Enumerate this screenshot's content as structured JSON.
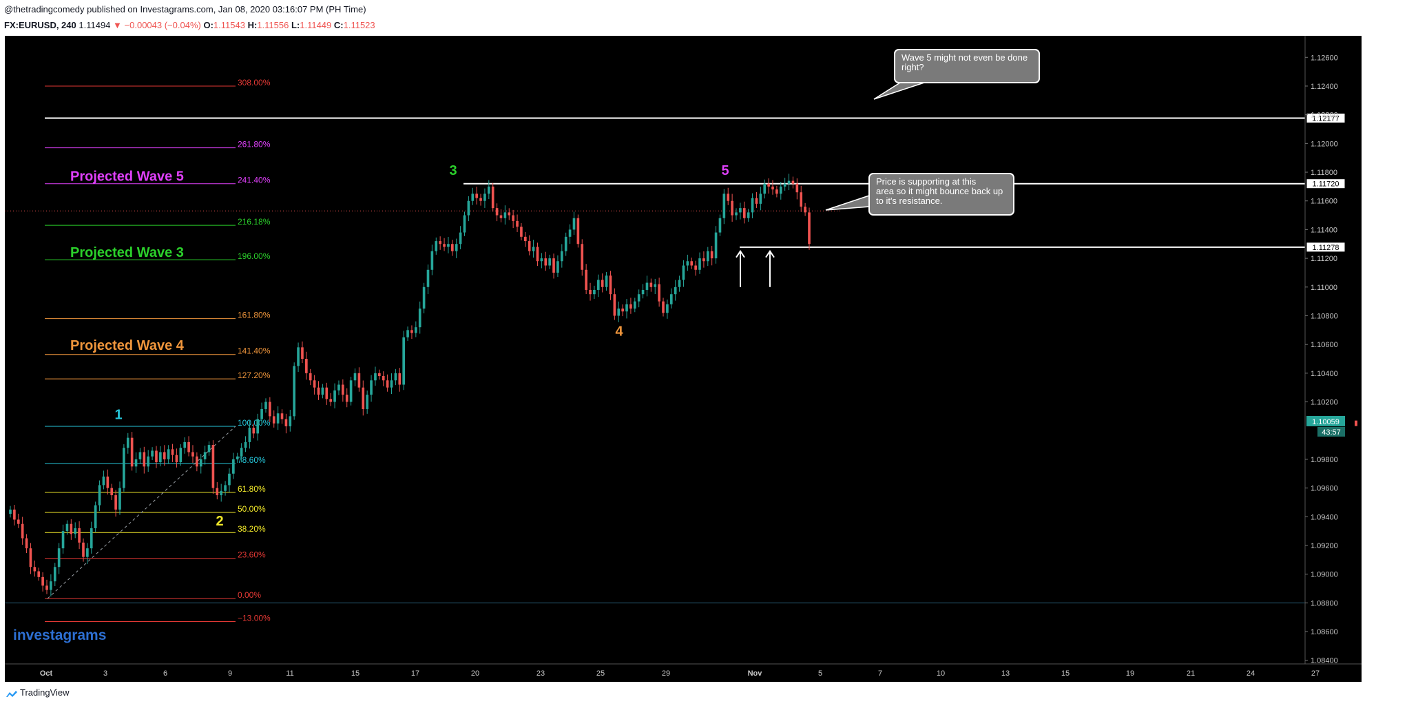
{
  "header": {
    "published": "@thetradingcomedy published on Investagrams.com, Jan 08, 2020 03:16:07 PM (PH Time)",
    "symbol": "FX:EURUSD, 240",
    "last": "1.11494",
    "change": "−0.00043 (−0.04%)",
    "o_label": "O:",
    "o": "1.11543",
    "h_label": "H:",
    "h": "1.11556",
    "l_label": "L:",
    "l": "1.11449",
    "c_label": "C:",
    "c": "1.11523"
  },
  "footer": {
    "brand": "TradingView"
  },
  "watermark": "investagrams",
  "colors": {
    "up": "#26a69a",
    "down": "#ef5350",
    "background": "#000000",
    "fib_red": "#e53935",
    "fib_magenta": "#e040fb",
    "fib_green": "#2bd02b",
    "fib_orange": "#f0963c",
    "fib_cyan": "#26c6da",
    "fib_yellow": "#f2e92a"
  },
  "chart_data": {
    "type": "candlestick",
    "symbol": "FX:EURUSD",
    "interval": "240",
    "ylim": [
      1.0825,
      1.1275
    ],
    "y_ticks": [
      "1.12600",
      "1.12400",
      "1.12200",
      "1.12000",
      "1.11800",
      "1.11600",
      "1.11400",
      "1.11200",
      "1.11000",
      "1.10800",
      "1.10600",
      "1.10400",
      "1.10200",
      "1.09800",
      "1.09600",
      "1.09400",
      "1.09200",
      "1.09000",
      "1.08800",
      "1.08600",
      "1.08400"
    ],
    "x_ticks": [
      "Oct",
      "3",
      "6",
      "9",
      "11",
      "15",
      "17",
      "20",
      "23",
      "25",
      "29",
      "Nov",
      "5",
      "7",
      "10",
      "13",
      "15",
      "19",
      "21",
      "24",
      "27"
    ],
    "price_labels": [
      {
        "price": 1.12177,
        "text": "1.12177"
      },
      {
        "price": 1.1172,
        "text": "1.11720"
      },
      {
        "price": 1.11278,
        "text": "1.11278"
      }
    ],
    "last_price": {
      "price": 1.10059,
      "text": "1.10059",
      "countdown": "43:57"
    },
    "fib_levels": [
      {
        "label": "308.00%",
        "price": 1.124,
        "color": "#e53935"
      },
      {
        "label": "261.80%",
        "price": 1.1197,
        "color": "#e040fb"
      },
      {
        "label": "241.40%",
        "price": 1.1172,
        "color": "#e040fb"
      },
      {
        "label": "216.18%",
        "price": 1.1143,
        "color": "#2bd02b"
      },
      {
        "label": "196.00%",
        "price": 1.1119,
        "color": "#2bd02b"
      },
      {
        "label": "161.80%",
        "price": 1.1078,
        "color": "#f0963c"
      },
      {
        "label": "141.40%",
        "price": 1.1053,
        "color": "#f0963c"
      },
      {
        "label": "127.20%",
        "price": 1.1036,
        "color": "#f0963c"
      },
      {
        "label": "100.00%",
        "price": 1.1003,
        "color": "#26c6da"
      },
      {
        "label": "78.60%",
        "price": 1.0977,
        "color": "#26c6da"
      },
      {
        "label": "61.80%",
        "price": 1.0957,
        "color": "#f2e92a"
      },
      {
        "label": "50.00%",
        "price": 1.0943,
        "color": "#f2e92a"
      },
      {
        "label": "38.20%",
        "price": 1.0929,
        "color": "#f2e92a"
      },
      {
        "label": "23.60%",
        "price": 1.0911,
        "color": "#e53935"
      },
      {
        "label": "0.00%",
        "price": 1.0883,
        "color": "#e53935"
      },
      {
        "label": "−13.00%",
        "price": 1.0867,
        "color": "#e53935"
      }
    ],
    "projections": [
      {
        "text": "Projected Wave 5",
        "price": 1.1177,
        "color": "#e040fb"
      },
      {
        "text": "Projected Wave 3",
        "price": 1.1124,
        "color": "#2bd02b"
      },
      {
        "text": "Projected Wave 4",
        "price": 1.1059,
        "color": "#f0963c"
      }
    ],
    "wave_labels": [
      {
        "text": "1",
        "date": "Oct 3",
        "price": 1.1008,
        "color": "#26c6da"
      },
      {
        "text": "2",
        "date": "Oct 9",
        "price": 1.0934,
        "color": "#f2e92a"
      },
      {
        "text": "3",
        "date": "Oct 18",
        "price": 1.1178,
        "color": "#2bd02b"
      },
      {
        "text": "4",
        "date": "Oct 25",
        "price": 1.1066,
        "color": "#f0963c"
      },
      {
        "text": "5",
        "date": "Nov 1",
        "price": 1.1178,
        "color": "#e040fb"
      }
    ],
    "annotations": [
      {
        "text": "Wave 5 might not even be done right?"
      },
      {
        "text": "Price is supporting at this area so it might bounce back up to it's resistance."
      }
    ],
    "closes": [
      1.0945,
      1.0938,
      1.0935,
      1.0925,
      1.0918,
      1.0905,
      1.0902,
      1.0898,
      1.0892,
      1.0889,
      1.0895,
      1.0905,
      1.0918,
      1.093,
      1.0935,
      1.0928,
      1.0932,
      1.0922,
      1.0912,
      1.0918,
      1.0932,
      1.0948,
      1.0962,
      1.0968,
      1.096,
      1.0955,
      1.0945,
      1.096,
      1.0988,
      1.0995,
      1.0975,
      1.098,
      1.0985,
      1.0975,
      1.0982,
      1.0986,
      1.0978,
      1.0985,
      1.098,
      1.0987,
      1.0983,
      1.0978,
      1.0988,
      1.0992,
      1.0985,
      1.0982,
      1.0975,
      1.098,
      1.0985,
      1.099,
      1.096,
      1.0955,
      1.0958,
      1.0962,
      1.097,
      1.098,
      1.0982,
      1.0988,
      1.0992,
      1.1002,
      1.0998,
      1.1008,
      1.1015,
      1.102,
      1.101,
      1.1005,
      1.1012,
      1.1008,
      1.1003,
      1.101,
      1.1045,
      1.1058,
      1.105,
      1.104,
      1.1035,
      1.103,
      1.1025,
      1.103,
      1.1022,
      1.102,
      1.1028,
      1.1032,
      1.1025,
      1.102,
      1.1035,
      1.104,
      1.103,
      1.1015,
      1.1025,
      1.1035,
      1.104,
      1.1038,
      1.1035,
      1.103,
      1.1035,
      1.104,
      1.1032,
      1.1065,
      1.107,
      1.1068,
      1.1072,
      1.1085,
      1.11,
      1.1112,
      1.1125,
      1.1132,
      1.113,
      1.1128,
      1.113,
      1.1125,
      1.113,
      1.1138,
      1.115,
      1.116,
      1.1165,
      1.1162,
      1.116,
      1.1165,
      1.117,
      1.1155,
      1.115,
      1.1148,
      1.1152,
      1.115,
      1.1146,
      1.1142,
      1.1135,
      1.1132,
      1.1125,
      1.1128,
      1.1118,
      1.112,
      1.1115,
      1.112,
      1.111,
      1.1118,
      1.1125,
      1.1135,
      1.114,
      1.1148,
      1.113,
      1.1112,
      1.1098,
      1.1095,
      1.1098,
      1.1105,
      1.11,
      1.1108,
      1.1095,
      1.108,
      1.1085,
      1.1083,
      1.1088,
      1.1085,
      1.109,
      1.1095,
      1.1098,
      1.1103,
      1.11,
      1.1102,
      1.109,
      1.1082,
      1.1088,
      1.1095,
      1.11,
      1.1105,
      1.1115,
      1.1118,
      1.1115,
      1.1112,
      1.112,
      1.1118,
      1.1125,
      1.112,
      1.1138,
      1.1148,
      1.1165,
      1.116,
      1.115,
      1.1152,
      1.1155,
      1.1148,
      1.1152,
      1.1162,
      1.1158,
      1.1165,
      1.1172,
      1.117,
      1.1168,
      1.1165,
      1.117,
      1.1172,
      1.1174,
      1.1172,
      1.1166,
      1.1156,
      1.1152,
      1.113
    ]
  }
}
